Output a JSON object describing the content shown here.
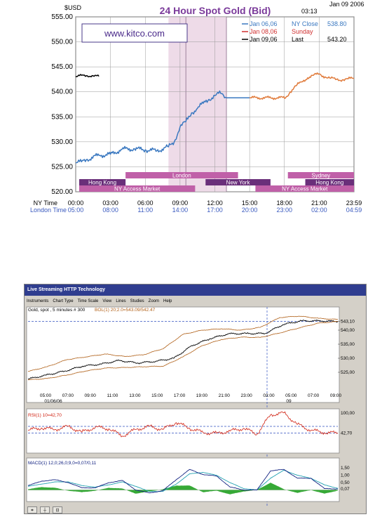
{
  "top_chart": {
    "title": "24 Hour Spot Gold (Bid)",
    "currency_label": "$USD",
    "date": "Jan 09 2006",
    "time": "03:13",
    "watermark": "www.kitco.com",
    "legend": [
      {
        "date": "Jan 06,06",
        "label": "NY Close",
        "value": "538.80",
        "color": "#3a78c0"
      },
      {
        "date": "Jan 08,06",
        "label": "Sunday",
        "value": "",
        "color": "#d03030"
      },
      {
        "date": "Jan 09,06",
        "label": "Last",
        "value": "543.20",
        "color": "#000000"
      }
    ],
    "row1_label": "NY Time",
    "row2_label": "London Time",
    "ny_ticks": [
      "00:00",
      "03:00",
      "06:00",
      "09:00",
      "12:00",
      "15:00",
      "18:00",
      "21:00",
      "23:59"
    ],
    "london_ticks": [
      "05:00",
      "08:00",
      "11:00",
      "14:00",
      "17:00",
      "20:00",
      "23:00",
      "02:00",
      "04:59"
    ],
    "markets": [
      "Hong Kong",
      "London",
      "New York",
      "NY Access Market",
      "Sydney",
      "Hong Kong",
      "NY Access Market"
    ],
    "colors": {
      "jan06": "#3a78c0",
      "jan08": "#e07a3a",
      "jan09": "#000000",
      "session": "#c060a8",
      "session_dark": "#6a2f7a",
      "highlight": "#eedbe8"
    }
  },
  "app": {
    "window_title": "Live Streaming HTTP Technology",
    "menu": [
      "Instruments",
      "Chart Type",
      "Time Scale",
      "View",
      "Lines",
      "Studies",
      "Zoom",
      "Help"
    ],
    "price_caption": "Gold, spot , 5 minutes # 300",
    "boll_caption": "BOL(1) 20;2.0=543.09/542.47",
    "price_ticks": [
      "543,10",
      "540,00",
      "535,00",
      "530,00",
      "525,00"
    ],
    "time_ticks": [
      "05:00",
      "07:00",
      "09:00",
      "11:00",
      "13:00",
      "15:00",
      "17:00",
      "19:00",
      "21:00",
      "23:00",
      "03:00",
      "05:00",
      "07:00",
      "09:00"
    ],
    "date_under_first": "01/06/06",
    "date_under_split": "09",
    "rsi_caption": "RSI(1) 10=42,70",
    "rsi_ticks": [
      "100,00",
      "42,70"
    ],
    "macd_caption": "MACD(1) 12,0;26,0;9,0=0,07/0,11",
    "macd_ticks": [
      "1,50",
      "1,00",
      "0,50",
      "0,07"
    ],
    "colors": {
      "price": "#000000",
      "bollinger": "#b06018",
      "rsi": "#d02010",
      "macd_line": "#102080",
      "macd_signal": "#20a0b0",
      "macd_hist": "#20a020",
      "ref": "#3050c0"
    }
  },
  "chart_data": [
    {
      "type": "line",
      "title": "24 Hour Spot Gold (Bid)",
      "ylabel": "$USD",
      "ylim": [
        520,
        555
      ],
      "y_ticks": [
        520,
        525,
        530,
        535,
        540,
        545,
        550,
        555
      ],
      "x_unit": "NY time (hour of day)",
      "series": [
        {
          "name": "Jan 06,06",
          "x": [
            0,
            0.5,
            1,
            2,
            3,
            4,
            5,
            6,
            7,
            8,
            8.5,
            9,
            9.5,
            10,
            10.5,
            11,
            11.5,
            12,
            12.5,
            13
          ],
          "y": [
            525.8,
            526.0,
            526.5,
            527.3,
            527.5,
            528.5,
            528.6,
            528.4,
            528.2,
            529.0,
            530.0,
            533.0,
            534.0,
            535.8,
            536.7,
            537.7,
            538.5,
            539.3,
            539.7,
            538.8
          ]
        },
        {
          "name": "Jan 06,06 NY Close (flat)",
          "x": [
            13,
            15
          ],
          "y": [
            538.8,
            538.8
          ]
        },
        {
          "name": "Jan 08,06",
          "x": [
            15,
            18.1,
            18.5,
            19,
            19.5,
            20,
            20.5,
            21,
            21.5,
            22,
            22.5,
            23,
            23.5,
            24
          ],
          "y": [
            538.8,
            538.8,
            540.0,
            541.2,
            542.0,
            542.8,
            543.3,
            543.6,
            543.0,
            542.7,
            542.5,
            542.4,
            542.6,
            542.7
          ]
        },
        {
          "name": "Jan 09,06",
          "x": [
            0,
            0.5,
            1,
            1.5,
            2
          ],
          "y": [
            543.0,
            543.3,
            543.2,
            543.2,
            543.1
          ]
        }
      ]
    },
    {
      "type": "line",
      "title": "Gold, spot , 5 minutes # 300",
      "x_ticks": [
        "05:00",
        "07:00",
        "09:00",
        "11:00",
        "13:00",
        "15:00",
        "17:00",
        "19:00",
        "21:00",
        "23:00",
        "03:00",
        "05:00",
        "07:00",
        "09:00"
      ],
      "ylim": [
        522,
        546
      ],
      "series": [
        {
          "name": "price",
          "y": [
            522.6,
            524.0,
            525.4,
            527.2,
            527.9,
            529.2,
            528.3,
            528.9,
            530.0,
            534.5,
            537.0,
            538.7,
            538.8,
            538.8,
            542.0,
            543.3,
            543.3,
            543.1
          ]
        },
        {
          "name": "BOL upper",
          "y": [
            525.3,
            527.0,
            529.5,
            530.5,
            531.5,
            530.6,
            531.3,
            533.5,
            538.5,
            540.0,
            540.5,
            540.0,
            541.0,
            544.5,
            545.0,
            544.2,
            543.8
          ]
        },
        {
          "name": "BOL lower",
          "y": [
            522.3,
            522.8,
            524.0,
            525.5,
            526.5,
            526.7,
            527.0,
            527.2,
            530.5,
            534.5,
            536.7,
            537.5,
            537.4,
            539.0,
            540.8,
            542.5,
            543.1
          ]
        }
      ]
    },
    {
      "type": "line",
      "title": "RSI(1) 10=42,70",
      "ylim": [
        0,
        100
      ],
      "series": [
        {
          "name": "RSI",
          "y": [
            50,
            56,
            52,
            60,
            45,
            58,
            54,
            35,
            52,
            60,
            52,
            70,
            55,
            44,
            42,
            48,
            55,
            40,
            90,
            95,
            65,
            50,
            44,
            42.7
          ]
        }
      ]
    },
    {
      "type": "line",
      "title": "MACD(1) 12,0;26,0;9,0=0,07/0,11",
      "ylim": [
        -0.5,
        1.7
      ],
      "series": [
        {
          "name": "MACD",
          "y": [
            0.3,
            0.6,
            0.7,
            0.5,
            0.15,
            0.15,
            0.5,
            0.65,
            0.0,
            -0.2,
            -0.05,
            0.7,
            1.4,
            1.05,
            0.95,
            0.2,
            0.0,
            0.0,
            1.3,
            1.4,
            0.8,
            0.8,
            0.1,
            0.07
          ]
        },
        {
          "name": "Signal",
          "y": [
            0.25,
            0.4,
            0.55,
            0.55,
            0.3,
            0.2,
            0.35,
            0.55,
            0.25,
            -0.1,
            -0.1,
            0.4,
            1.1,
            1.2,
            1.0,
            0.5,
            0.1,
            0.0,
            0.8,
            1.35,
            1.0,
            0.8,
            0.35,
            0.11
          ]
        }
      ]
    }
  ]
}
